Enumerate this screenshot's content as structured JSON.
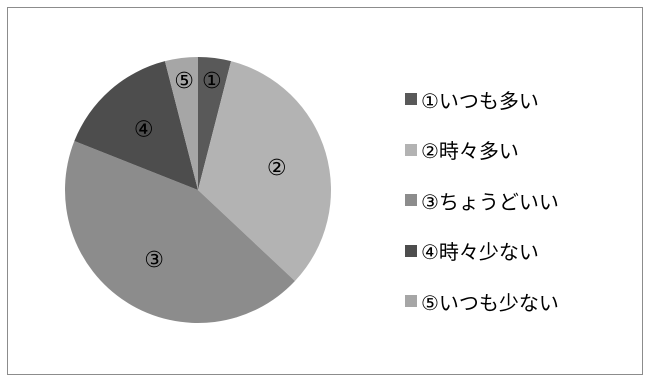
{
  "chart_data": {
    "type": "pie",
    "categories": [
      "①いつも多い",
      "②時々多い",
      "③ちょうどいい",
      "④時々少ない",
      "⑤いつも少ない"
    ],
    "slice_labels": [
      "①",
      "②",
      "③",
      "④",
      "⑤"
    ],
    "values": [
      4,
      33,
      44,
      15,
      4
    ],
    "colors": [
      "#595959",
      "#b3b3b3",
      "#8c8c8c",
      "#4d4d4d",
      "#a6a6a6"
    ],
    "start_angle_deg": 0,
    "direction": "clockwise",
    "legend": "right",
    "title": ""
  }
}
